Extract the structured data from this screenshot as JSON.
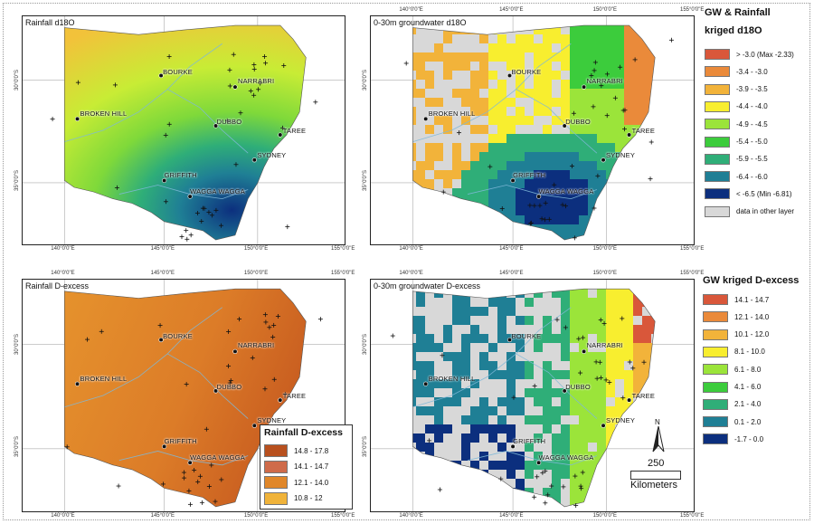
{
  "panels": [
    {
      "id": "rain-d18o",
      "title": "Rainfall d18O",
      "ticks_top": [],
      "ticks_bottom": [
        "140°0'0\"E",
        "145°0'0\"E",
        "150°0'0\"E",
        "155°0'0\"E"
      ],
      "ticks_left": [
        "30°0'0\"S",
        "35°0'0\"S"
      ],
      "cities": [
        "BOURKE",
        "NARRABRI",
        "BROKEN HILL",
        "DUBBO",
        "TAREE",
        "SYDNEY",
        "GRIFFITH",
        "WAGGA WAGGA"
      ]
    },
    {
      "id": "gw-d18o",
      "title": "0-30m groundwater d18O",
      "ticks_top": [
        "140°0'0\"E",
        "145°0'0\"E",
        "150°0'0\"E",
        "155°0'0\"E"
      ],
      "ticks_bottom": [
        "140°0'0\"E",
        "145°0'0\"E",
        "150°0'0\"E",
        "155°0'0\"E"
      ],
      "ticks_left": [
        "30°0'0\"S",
        "35°0'0\"S"
      ],
      "cities": [
        "BOURKE",
        "NARRABRI",
        "BROKEN HILL",
        "DUBBO",
        "TAREE",
        "SYDNEY",
        "GRIFFITH",
        "WAGGA WAGGA"
      ]
    },
    {
      "id": "rain-dex",
      "title": "Rainfall D-excess",
      "ticks_top": [
        "140°0'0\"E",
        "145°0'0\"E",
        "150°0'0\"E",
        "155°0'0\"E"
      ],
      "ticks_bottom": [
        "140°0'0\"E",
        "145°0'0\"E",
        "150°0'0\"E",
        "155°0'0\"E"
      ],
      "ticks_left": [
        "30°0'0\"S",
        "35°0'0\"S"
      ],
      "cities": [
        "BOURKE",
        "NARRABRI",
        "BROKEN HILL",
        "DUBBO",
        "TAREE",
        "SYDNEY",
        "GRIFFITH",
        "WAGGA WAGGA"
      ]
    },
    {
      "id": "gw-dex",
      "title": "0-30m groundwater D-excess",
      "ticks_top": [
        "140°0'0\"E",
        "145°0'0\"E",
        "150°0'0\"E",
        "155°0'0\"E"
      ],
      "ticks_bottom": [
        "140°0'0\"E",
        "145°0'0\"E",
        "150°0'0\"E",
        "155°0'0\"E"
      ],
      "ticks_left": [
        "30°0'0\"S",
        "35°0'0\"S"
      ],
      "cities": [
        "BOURKE",
        "NARRABRI",
        "BROKEN HILL",
        "DUBBO",
        "TAREE",
        "SYDNEY",
        "GRIFFITH",
        "WAGGA WAGGA"
      ]
    }
  ],
  "legend_d18o": {
    "title_line1": "GW & Rainfall",
    "title_line2": "kriged d18O",
    "items": [
      {
        "label": "> -3.0 (Max -2.33)",
        "color": "#d9573a"
      },
      {
        "label": "-3.4 - -3.0",
        "color": "#ea8a3a"
      },
      {
        "label": "-3.9 - -3.5",
        "color": "#f2b33a"
      },
      {
        "label": "-4.4 - -4.0",
        "color": "#f8ee2f"
      },
      {
        "label": "-4.9 - -4.5",
        "color": "#9be43a"
      },
      {
        "label": "-5.4 - -5.0",
        "color": "#3ccc3c"
      },
      {
        "label": "-5.9 - -5.5",
        "color": "#2fae78"
      },
      {
        "label": "-6.4 - -6.0",
        "color": "#1f7f95"
      },
      {
        "label": "< -6.5 (Min -6.81)",
        "color": "#0c2f7e"
      },
      {
        "label": "data in other layer",
        "color": "#d8d8d8"
      }
    ]
  },
  "legend_dex": {
    "title": "GW kriged D-excess",
    "items": [
      {
        "label": "14.1 - 14.7",
        "color": "#d9573a"
      },
      {
        "label": "12.1 - 14.0",
        "color": "#ea8a3a"
      },
      {
        "label": "10.1 - 12.0",
        "color": "#f2b33a"
      },
      {
        "label": "8.1 - 10.0",
        "color": "#f8ee2f"
      },
      {
        "label": "6.1 - 8.0",
        "color": "#9be43a"
      },
      {
        "label": "4.1 - 6.0",
        "color": "#3ccc3c"
      },
      {
        "label": "2.1 - 4.0",
        "color": "#2fae78"
      },
      {
        "label": "0.1 - 2.0",
        "color": "#1f7f95"
      },
      {
        "label": "-1.7 - 0.0",
        "color": "#0c2f7e"
      }
    ]
  },
  "legend_rain_dex": {
    "title": "Rainfall D-excess",
    "items": [
      {
        "label": "14.8 - 17.8",
        "color": "#b8501e"
      },
      {
        "label": "14.1 - 14.7",
        "color": "#cf6b4a"
      },
      {
        "label": "12.1 - 14.0",
        "color": "#e0872a"
      },
      {
        "label": "10.8 - 12",
        "color": "#f0b33a"
      }
    ]
  },
  "north_arrow": "N",
  "scale": {
    "value": "250",
    "unit": "Kilometers"
  }
}
